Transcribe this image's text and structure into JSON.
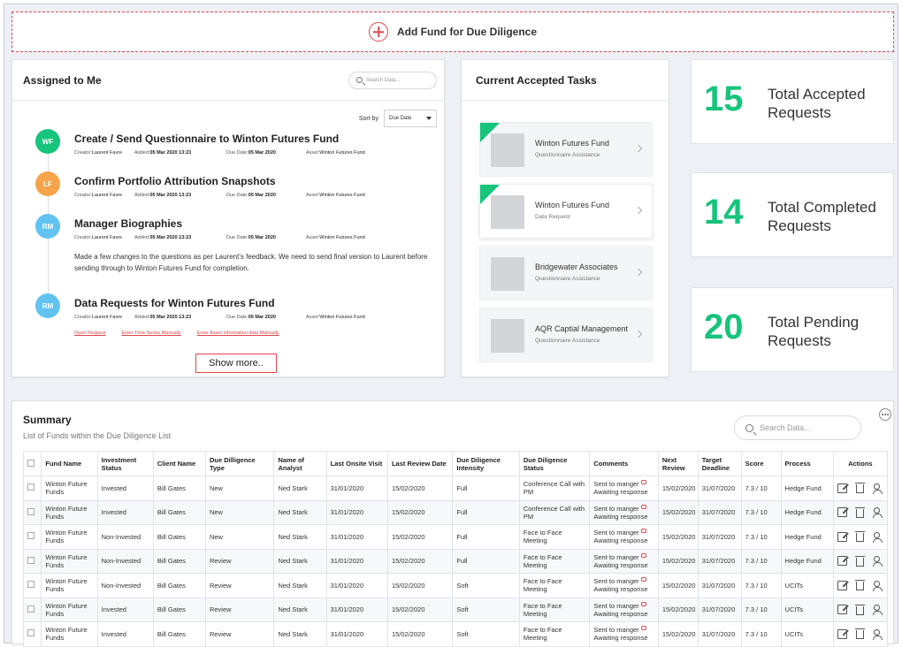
{
  "add_fund": {
    "label": "Add Fund for Due Diligence"
  },
  "assigned": {
    "title": "Assigned to Me",
    "search_placeholder": "Search Data...",
    "sort_label": "Sort by",
    "sort_value": "Due Date",
    "meta_labels": {
      "creator": "Creator:",
      "added": "Added:",
      "due": "Due Date:",
      "asset": "Asset:"
    },
    "tasks": [
      {
        "initials": "WF",
        "color": "#16c47c",
        "title": "Create / Send Questionnaire to Winton Futures Fund",
        "creator": "Laurent Favre",
        "added": "05 Mar 2020 13:23",
        "due": "05 Mar 2020",
        "asset": "Winton Futures Fund"
      },
      {
        "initials": "LF",
        "color": "#f5a44b",
        "title": "Confirm Portfolio Attribution Snapshots",
        "creator": "Laurent Favre",
        "added": "05 Mar 2020 13:23",
        "due": "05 Mar 2020",
        "asset": "Winton Futures Fund"
      },
      {
        "initials": "RM",
        "color": "#62c3f1",
        "title": "Manager Biographies",
        "creator": "Laurent Favre",
        "added": "05 Mar 2020 13:23",
        "due": "05 Mar 2020",
        "asset": "Winton Futures Fund",
        "note": "Made a few changes to the questions as per Laurent's feedback. We need to send final version to Laurent before sending through to Winton Futures Fund for completion."
      },
      {
        "initials": "RM",
        "color": "#62c3f1",
        "title": "Data Requests for Winton Futures Fund",
        "creator": "Laurent Favre",
        "added": "05 Mar 2020 13:23",
        "due": "05 Mar 2020",
        "asset": "Winton Futures Fund",
        "links": [
          "Open Request",
          "Enter Time Series Manually",
          "Enter Asset Information data Manually"
        ]
      }
    ],
    "show_more": "Show more.."
  },
  "current_tasks": {
    "title": "Current Accepted Tasks",
    "items": [
      {
        "name": "Winton Futures Fund",
        "sub": "Questionnaire Assistance",
        "flag": true,
        "active": false
      },
      {
        "name": "Winton Futures Fund",
        "sub": "Data Request",
        "flag": true,
        "active": true
      },
      {
        "name": "Bridgewater Associates",
        "sub": "Questionnaire Assistance",
        "flag": false,
        "active": false
      },
      {
        "name": "AQR Captial Management",
        "sub": "Questionnaire Assistance",
        "flag": false,
        "active": false
      }
    ]
  },
  "stats": [
    {
      "value": "15",
      "label": "Total Accepted Requests"
    },
    {
      "value": "14",
      "label": "Total Completed Requests"
    },
    {
      "value": "20",
      "label": "Total Pending Requests"
    }
  ],
  "summary": {
    "title": "Summary",
    "subtitle": "List of Funds within the Due Diligence List",
    "search_placeholder": "Search Data...",
    "columns": [
      "Fund Name",
      "Investment Status",
      "Client Name",
      "Due Dilligence Type",
      "Name of Analyst",
      "Last Onsite Visit",
      "Last Review Date",
      "Due Diligence Intensity",
      "Due Diligence Status",
      "Comments",
      "Next Review",
      "Target Deadline",
      "Score",
      "Process",
      "Actions"
    ],
    "rows": [
      [
        "Winton Future Funds",
        "Invested",
        "Bill Gates",
        "New",
        "Ned Stark",
        "31/01/2020",
        "15/02/2020",
        "Full",
        "Conference Call with PM",
        "Sent to manger Awaiting response",
        "15/02/2020",
        "31/07/2020",
        "7.3 / 10",
        "Hedge Fund"
      ],
      [
        "Winton Future Funds",
        "Invested",
        "Bill Gates",
        "New",
        "Ned Stark",
        "31/01/2020",
        "15/02/2020",
        "Full",
        "Conference Call with PM",
        "Sent to manger Awaiting response",
        "15/02/2020",
        "31/07/2020",
        "7.3 / 10",
        "Hedge Fund"
      ],
      [
        "Winton Future Funds",
        "Non-Invested",
        "Bill Gates",
        "New",
        "Ned Stark",
        "31/01/2020",
        "15/02/2020",
        "Full",
        "Face to Face Meeting",
        "Sent to manger Awaiting response",
        "15/02/2020",
        "31/07/2020",
        "7.3 / 10",
        "Hedge Fund"
      ],
      [
        "Winton Future Funds",
        "Non-Invested",
        "Bill Gates",
        "Review",
        "Ned Stark",
        "31/01/2020",
        "15/02/2020",
        "Full",
        "Face to Face Meeting",
        "Sent to manger Awaiting response",
        "15/02/2020",
        "31/07/2020",
        "7.3 / 10",
        "Hedge Fund"
      ],
      [
        "Winton Future Funds",
        "Non-Invested",
        "Bill Gates",
        "Review",
        "Ned Stark",
        "31/01/2020",
        "15/02/2020",
        "Soft",
        "Face to Face Meeting",
        "Sent to manger Awaiting response",
        "15/02/2020",
        "31/07/2020",
        "7.3 / 10",
        "UCITs"
      ],
      [
        "Winton Future Funds",
        "Invested",
        "Bill Gates",
        "Review",
        "Ned Stark",
        "31/01/2020",
        "15/02/2020",
        "Soft",
        "Face to Face Meeting",
        "Sent to manger Awaiting response",
        "15/02/2020",
        "31/07/2020",
        "7.3 / 10",
        "UCITs"
      ],
      [
        "Winton Future Funds",
        "Invested",
        "Bill Gates",
        "Review",
        "Ned Stark",
        "31/01/2020",
        "15/02/2020",
        "Soft",
        "Face to Face Meeting",
        "Sent to manger Awaiting response",
        "15/02/2020",
        "31/07/2020",
        "7.3 / 10",
        "UCITs"
      ]
    ]
  }
}
